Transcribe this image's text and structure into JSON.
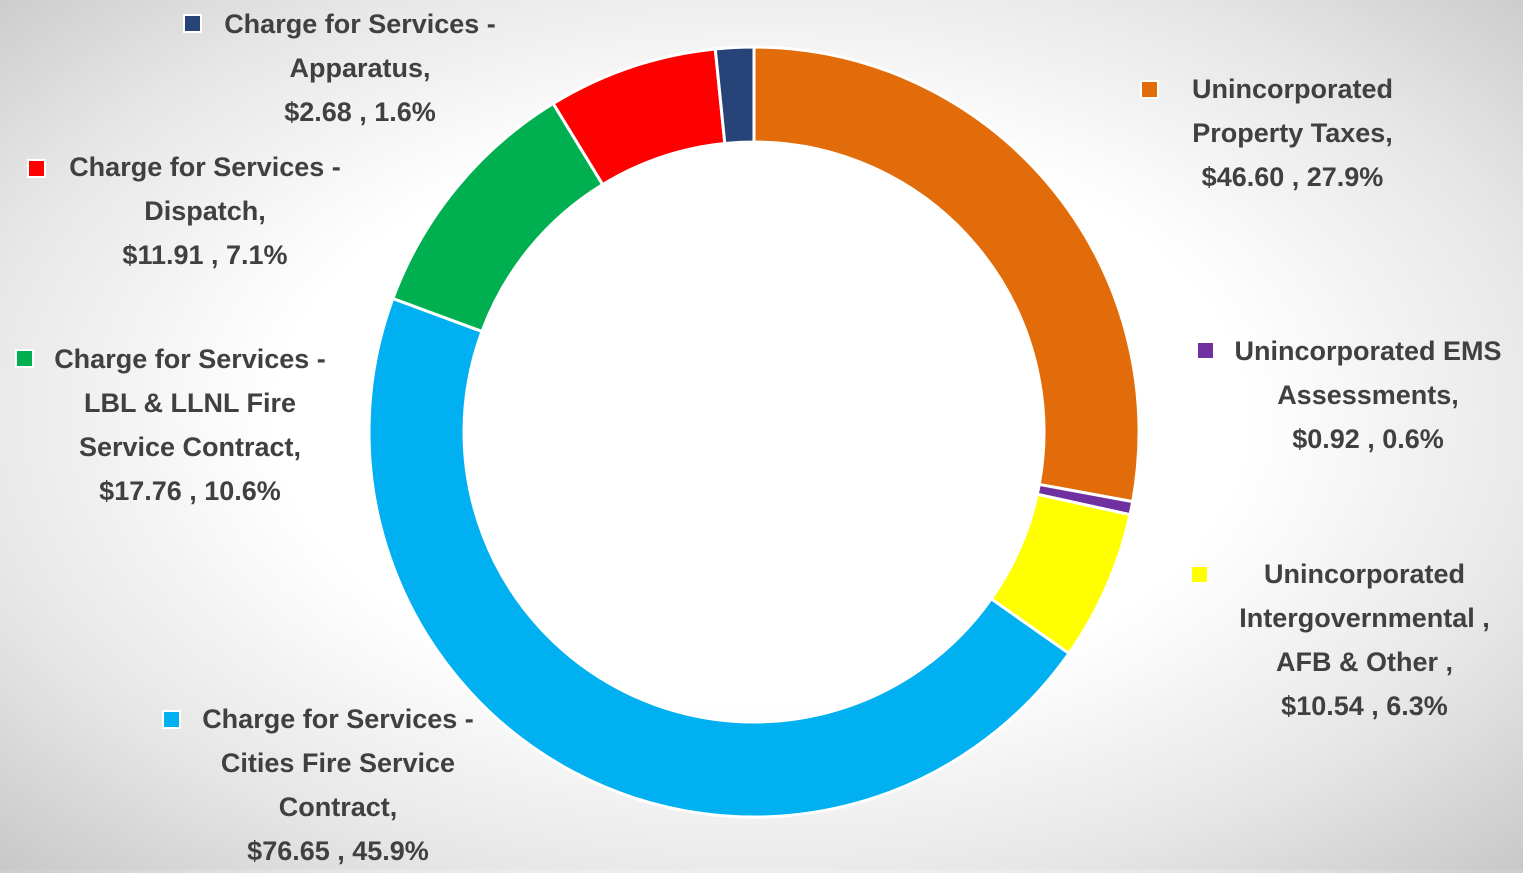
{
  "chart_data": {
    "type": "donut",
    "categories": [
      "Unincorporated Property Taxes,",
      "Unincorporated EMS Assessments,",
      "Unincorporated Intergovernmental , AFB & Other ,",
      "Charge for Services - Cities Fire Service Contract,",
      "Charge for Services - LBL & LLNL Fire Service Contract,",
      "Charge for Services - Dispatch,",
      "Charge for Services - Apparatus,"
    ],
    "values": [
      46.6,
      0.92,
      10.54,
      76.65,
      17.76,
      11.91,
      2.68
    ],
    "value_labels": [
      "$46.60 , 27.9%",
      "$0.92 , 0.6%",
      "$10.54 , 6.3%",
      "$76.65 , 45.9%",
      "$17.76 , 10.6%",
      "$11.91 , 7.1%",
      "$2.68 , 1.6%"
    ],
    "colors": [
      "#E36C0A",
      "#7030A0",
      "#FFFF00",
      "#00B0F0",
      "#00B050",
      "#FF0000",
      "#264478"
    ]
  }
}
